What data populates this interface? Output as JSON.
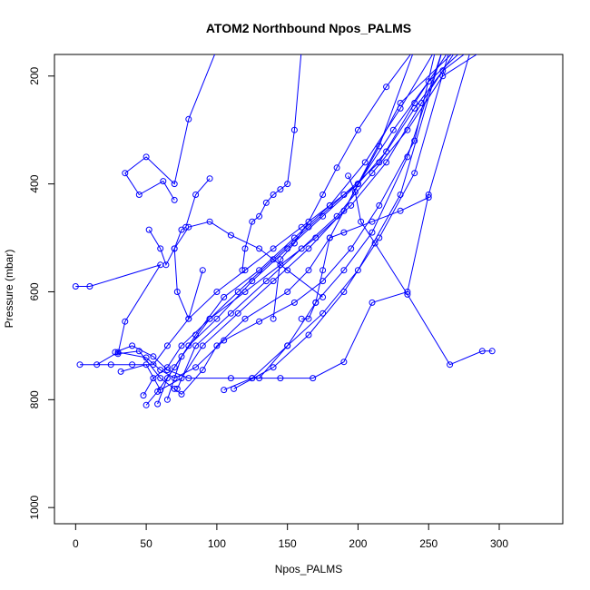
{
  "chart_data": {
    "type": "line",
    "title": "ATOM2 Northbound Npos_PALMS",
    "xlabel": "Npos_PALMS",
    "ylabel": "Pressure (mbar)",
    "xlim": [
      -15,
      345
    ],
    "ylim": [
      160,
      1030
    ],
    "y_reversed": true,
    "grid": false,
    "x_ticks": [
      0,
      50,
      100,
      150,
      200,
      250,
      300
    ],
    "y_ticks": [
      200,
      400,
      600,
      800,
      1000
    ],
    "colors": {
      "series": "#0000ff",
      "axis": "#000000"
    },
    "series": [
      {
        "x": [
          0,
          10,
          60,
          35,
          30,
          45,
          60,
          70,
          75,
          90,
          100,
          120,
          150,
          165,
          180,
          200,
          230,
          270
        ],
        "y": [
          590,
          590,
          550,
          655,
          715,
          710,
          760,
          780,
          790,
          745,
          700,
          650,
          600,
          560,
          500,
          400,
          250,
          150
        ]
      },
      {
        "x": [
          3,
          25,
          40,
          55,
          65,
          80,
          100,
          120,
          140,
          160,
          180,
          200,
          220,
          240,
          260,
          280
        ],
        "y": [
          735,
          735,
          735,
          735,
          700,
          650,
          600,
          560,
          520,
          480,
          440,
          400,
          340,
          260,
          190,
          150
        ]
      },
      {
        "x": [
          15,
          30,
          50,
          60,
          70,
          85,
          105,
          130,
          155,
          175,
          195,
          215,
          240,
          255
        ],
        "y": [
          735,
          712,
          722,
          745,
          760,
          740,
          690,
          655,
          620,
          580,
          520,
          440,
          320,
          150
        ]
      },
      {
        "x": [
          28,
          40,
          55,
          65,
          80,
          110,
          130,
          150,
          170,
          190,
          210,
          235,
          260
        ],
        "y": [
          712,
          700,
          720,
          745,
          760,
          760,
          760,
          700,
          620,
          560,
          490,
          350,
          150
        ]
      },
      {
        "x": [
          32,
          50,
          60,
          75,
          90,
          115,
          140,
          165,
          190,
          215,
          240
        ],
        "y": [
          748,
          735,
          782,
          760,
          700,
          640,
          580,
          520,
          450,
          330,
          150
        ]
      },
      {
        "x": [
          48,
          55,
          65,
          75,
          95,
          120,
          145,
          170,
          195,
          220,
          245,
          270
        ],
        "y": [
          792,
          760,
          740,
          700,
          650,
          600,
          550,
          500,
          440,
          360,
          250,
          150
        ]
      },
      {
        "x": [
          50,
          58,
          70,
          85,
          105,
          130,
          155,
          180,
          205,
          230,
          255
        ],
        "y": [
          810,
          785,
          740,
          680,
          610,
          560,
          500,
          440,
          360,
          260,
          150
        ]
      },
      {
        "x": [
          58,
          65,
          80,
          100,
          125,
          150,
          175,
          200,
          225,
          250,
          275
        ],
        "y": [
          808,
          760,
          700,
          650,
          580,
          520,
          460,
          400,
          300,
          210,
          150
        ]
      },
      {
        "x": [
          65,
          75,
          95,
          115,
          140,
          165,
          190,
          215,
          240,
          265
        ],
        "y": [
          800,
          720,
          650,
          600,
          540,
          480,
          420,
          360,
          250,
          150
        ]
      },
      {
        "x": [
          72,
          85,
          110,
          135,
          160,
          185,
          210,
          235,
          260,
          290
        ],
        "y": [
          780,
          700,
          640,
          580,
          520,
          460,
          380,
          300,
          200,
          150
        ]
      },
      {
        "x": [
          105,
          125,
          150,
          175,
          200,
          230,
          260
        ],
        "y": [
          782,
          760,
          700,
          640,
          560,
          420,
          150
        ]
      },
      {
        "x": [
          112,
          140,
          165,
          190,
          215,
          240,
          265
        ],
        "y": [
          780,
          740,
          680,
          600,
          500,
          380,
          150
        ]
      },
      {
        "x": [
          125,
          145,
          168,
          190,
          210,
          235,
          250,
          280
        ],
        "y": [
          760,
          760,
          760,
          730,
          620,
          600,
          420,
          150
        ]
      },
      {
        "x": [
          100,
          80,
          70,
          50,
          35,
          45,
          62,
          70
        ],
        "y": [
          150,
          280,
          400,
          350,
          380,
          420,
          395,
          430
        ]
      },
      {
        "x": [
          95,
          85,
          78,
          75,
          70,
          72,
          80,
          90
        ],
        "y": [
          390,
          420,
          480,
          485,
          520,
          600,
          650,
          560
        ]
      },
      {
        "x": [
          52,
          60,
          64,
          70,
          80,
          95,
          110,
          130,
          150,
          175
        ],
        "y": [
          485,
          520,
          550,
          520,
          480,
          470,
          495,
          520,
          560,
          610
        ]
      },
      {
        "x": [
          160,
          155,
          150,
          145,
          140,
          135,
          130,
          125,
          120,
          118
        ],
        "y": [
          150,
          300,
          400,
          410,
          420,
          435,
          460,
          470,
          520,
          560
        ]
      },
      {
        "x": [
          193,
          198,
          202,
          212,
          235,
          265,
          288,
          295
        ],
        "y": [
          385,
          415,
          470,
          510,
          605,
          735,
          710,
          710
        ]
      },
      {
        "x": [
          250,
          230,
          210,
          190,
          180,
          175,
          170,
          165,
          160
        ],
        "y": [
          425,
          450,
          470,
          490,
          500,
          560,
          620,
          650,
          650
        ]
      },
      {
        "x": [
          240,
          220,
          200,
          185,
          175,
          165,
          155,
          145,
          140
        ],
        "y": [
          150,
          220,
          300,
          370,
          420,
          470,
          510,
          540,
          650
        ]
      }
    ]
  }
}
